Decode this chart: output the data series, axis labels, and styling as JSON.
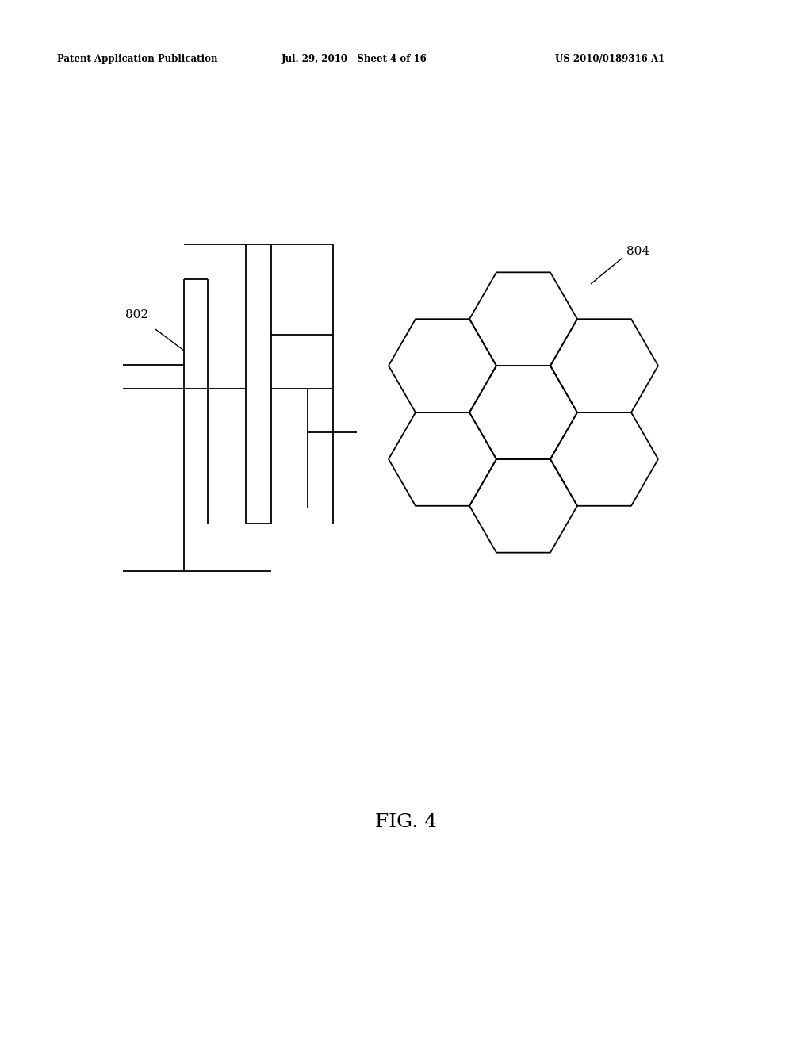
{
  "bg_color": "#ffffff",
  "line_color": "#000000",
  "line_width": 1.3,
  "header_text_left": "Patent Application Publication",
  "header_text_mid": "Jul. 29, 2010   Sheet 4 of 16",
  "header_text_right": "US 2010/0189316 A1",
  "fig_label": "FIG. 4",
  "label_802": "802",
  "label_804": "804"
}
